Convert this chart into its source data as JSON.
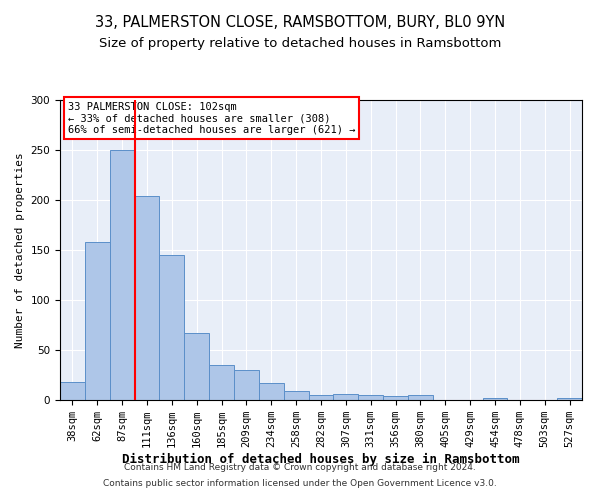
{
  "title1": "33, PALMERSTON CLOSE, RAMSBOTTOM, BURY, BL0 9YN",
  "title2": "Size of property relative to detached houses in Ramsbottom",
  "xlabel": "Distribution of detached houses by size in Ramsbottom",
  "ylabel": "Number of detached properties",
  "footnote1": "Contains HM Land Registry data © Crown copyright and database right 2024.",
  "footnote2": "Contains public sector information licensed under the Open Government Licence v3.0.",
  "annotation_line1": "33 PALMERSTON CLOSE: 102sqm",
  "annotation_line2": "← 33% of detached houses are smaller (308)",
  "annotation_line3": "66% of semi-detached houses are larger (621) →",
  "bar_labels": [
    "38sqm",
    "62sqm",
    "87sqm",
    "111sqm",
    "136sqm",
    "160sqm",
    "185sqm",
    "209sqm",
    "234sqm",
    "258sqm",
    "282sqm",
    "307sqm",
    "331sqm",
    "356sqm",
    "380sqm",
    "405sqm",
    "429sqm",
    "454sqm",
    "478sqm",
    "503sqm",
    "527sqm"
  ],
  "bar_values": [
    18,
    158,
    250,
    204,
    145,
    67,
    35,
    30,
    17,
    9,
    5,
    6,
    5,
    4,
    5,
    0,
    0,
    2,
    0,
    0,
    2
  ],
  "bar_color": "#aec6e8",
  "bar_edge_color": "#5b8fc9",
  "vline_x_index": 3,
  "vline_color": "red",
  "bg_color": "#e8eef8",
  "annotation_box_color": "red",
  "ylim": [
    0,
    300
  ],
  "title1_fontsize": 10.5,
  "title2_fontsize": 9.5,
  "xlabel_fontsize": 9,
  "ylabel_fontsize": 8,
  "tick_fontsize": 7.5,
  "annotation_fontsize": 7.5,
  "footnote_fontsize": 6.5
}
